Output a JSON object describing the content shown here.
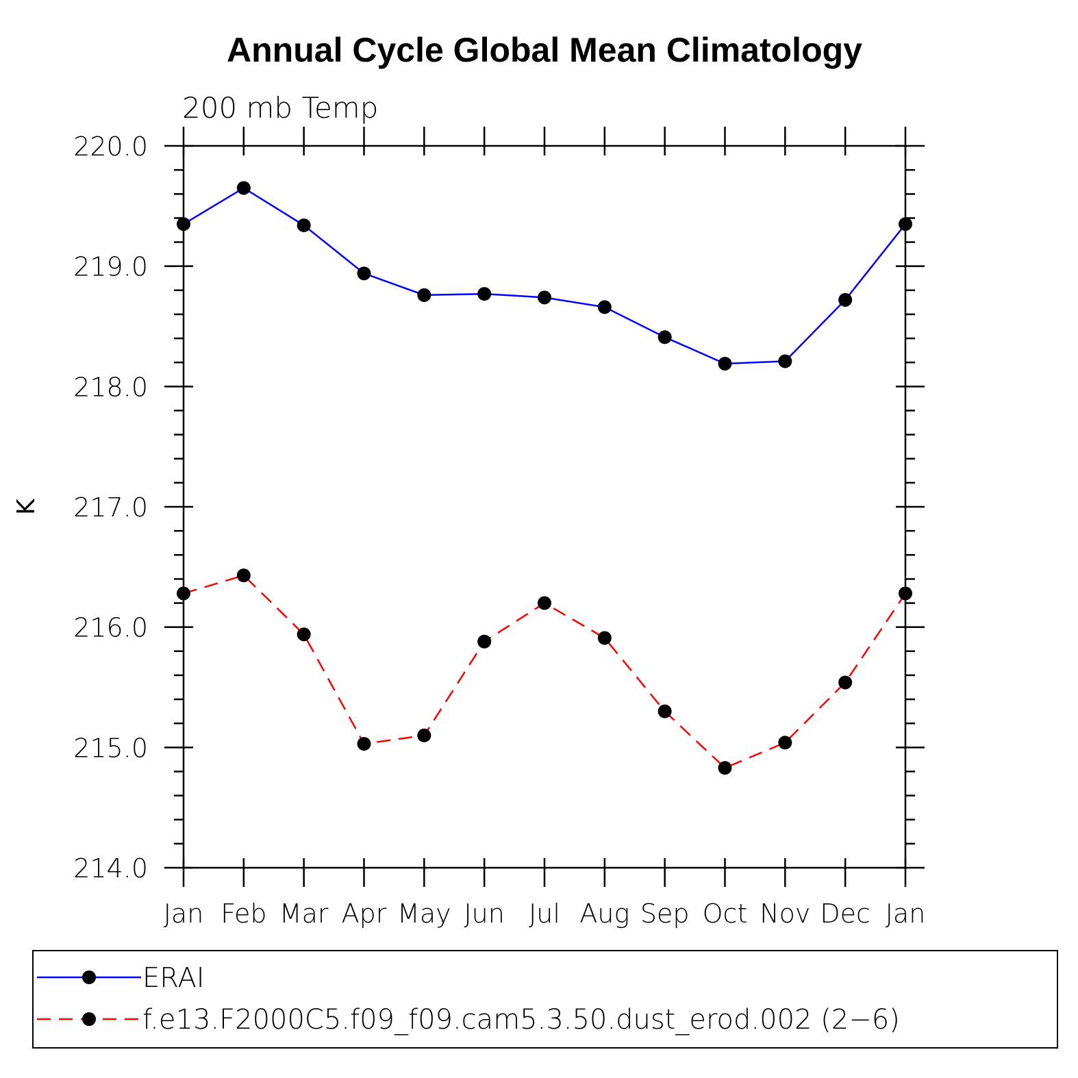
{
  "chart_data": {
    "type": "line",
    "title": "Annual Cycle Global Mean Climatology",
    "subtitle": "200 mb Temp",
    "xlabel": "",
    "ylabel": "K",
    "categories": [
      "Jan",
      "Feb",
      "Mar",
      "Apr",
      "May",
      "Jun",
      "Jul",
      "Aug",
      "Sep",
      "Oct",
      "Nov",
      "Dec",
      "Jan"
    ],
    "ylim": [
      214.0,
      220.0
    ],
    "yticks": [
      "214.0",
      "215.0",
      "216.0",
      "217.0",
      "218.0",
      "219.0",
      "220.0"
    ],
    "grid": false,
    "legend_position": "bottom",
    "series": [
      {
        "name": "ERAI",
        "color": "#0000ff",
        "style": "solid",
        "marker": "filled-circle",
        "values": [
          219.35,
          219.65,
          219.34,
          218.94,
          218.76,
          218.77,
          218.74,
          218.66,
          218.41,
          218.19,
          218.21,
          218.72,
          219.35
        ]
      },
      {
        "name": "f.e13.F2000C5.f09_f09.cam5.3.50.dust_erod.002 (2−6)",
        "color": "#ff0000",
        "style": "dashed",
        "marker": "filled-circle",
        "values": [
          216.28,
          216.43,
          215.94,
          215.03,
          215.1,
          215.88,
          216.2,
          215.91,
          215.3,
          214.83,
          215.04,
          215.54,
          216.28
        ]
      }
    ]
  }
}
